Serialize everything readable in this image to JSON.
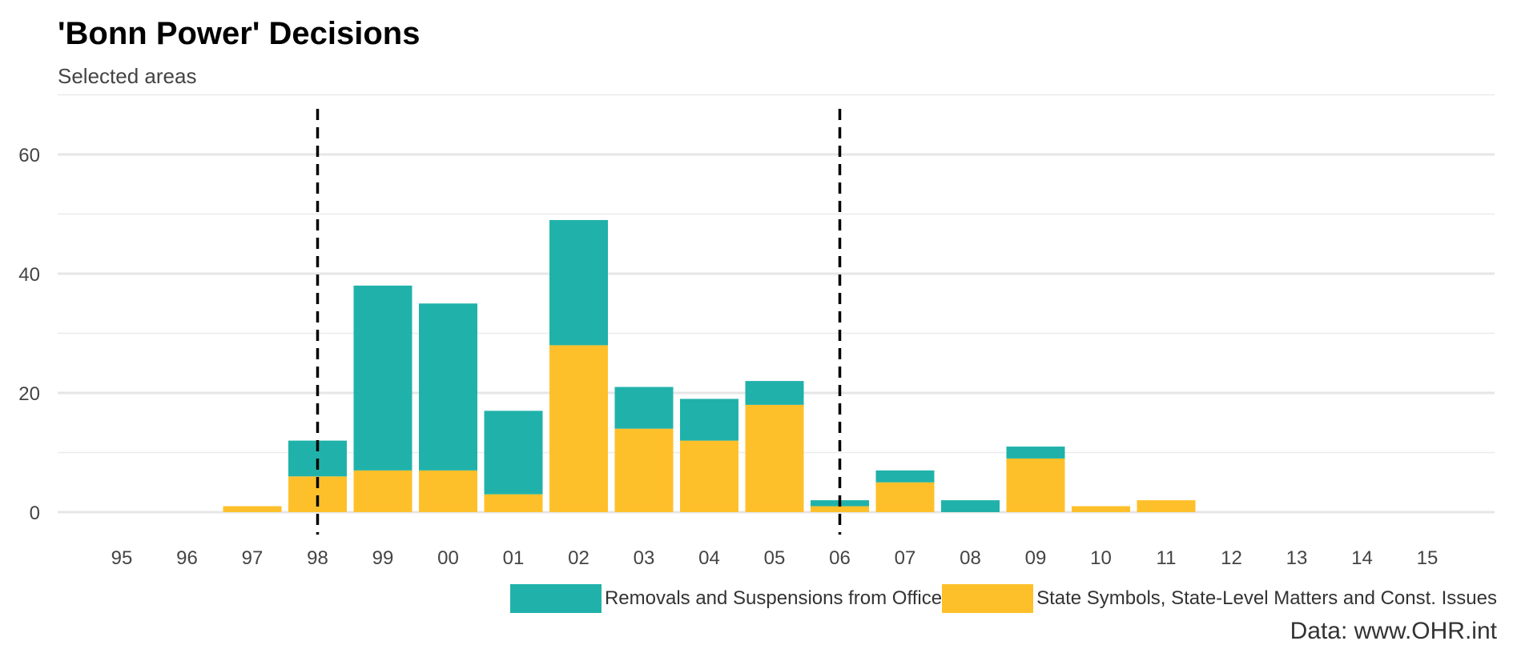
{
  "chart_data": {
    "type": "bar",
    "stacked": true,
    "title": "'Bonn Power' Decisions",
    "subtitle": "Selected areas",
    "caption": "Data: www.OHR.int",
    "xlabel": "",
    "ylabel": "",
    "ylim": [
      0,
      65
    ],
    "yticks": [
      0,
      20,
      40,
      60
    ],
    "grid": true,
    "legend_position": "bottom",
    "categories": [
      "95",
      "96",
      "97",
      "98",
      "99",
      "00",
      "01",
      "02",
      "03",
      "04",
      "05",
      "06",
      "07",
      "08",
      "09",
      "10",
      "11",
      "12",
      "13",
      "14",
      "15"
    ],
    "series": [
      {
        "name": "State Symbols, State-Level Matters and Const. Issues",
        "color": "#FEC02A",
        "values": [
          0,
          0,
          1,
          6,
          7,
          7,
          3,
          28,
          14,
          12,
          18,
          1,
          5,
          0,
          9,
          1,
          2,
          0,
          0,
          0,
          0
        ]
      },
      {
        "name": "Removals and Suspensions from Office",
        "color": "#20B2AA",
        "values": [
          0,
          0,
          0,
          6,
          31,
          28,
          14,
          21,
          7,
          7,
          4,
          1,
          2,
          2,
          2,
          0,
          0,
          0,
          0,
          0,
          0
        ]
      }
    ],
    "reference_lines": [
      {
        "axis": "x",
        "at": "98",
        "style": "dashed",
        "color": "#000000"
      },
      {
        "axis": "x",
        "at": "06",
        "style": "dashed",
        "color": "#000000"
      }
    ],
    "legend_order": [
      "Removals and Suspensions from Office",
      "State Symbols, State-Level Matters and Const. Issues"
    ]
  }
}
